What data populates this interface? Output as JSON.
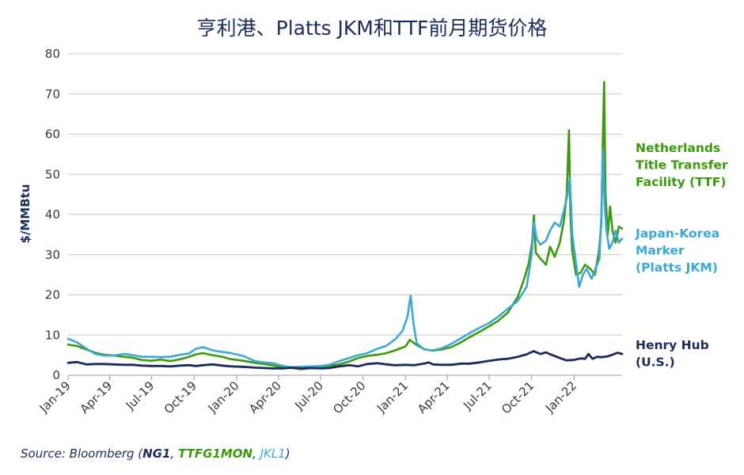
{
  "colors": {
    "ttf": "#3a9a0c",
    "jkm": "#3aa9d6",
    "henry_hub": "#1c2b5a",
    "title": "#1c2b5a"
  },
  "chart_data": {
    "type": "line",
    "title": "亨利港、Platts JKM和TTF前月期货价格",
    "ylabel": "$/MMBtu",
    "xlabel": "",
    "ylim": [
      0,
      80
    ],
    "yticks": [
      0,
      10,
      20,
      30,
      40,
      50,
      60,
      70,
      80
    ],
    "grid": "horizontal",
    "legend": "right, labels beside line ends",
    "x_tick_labels": [
      "Jan-19",
      "Apr-19",
      "Jul-19",
      "Oct-19",
      "Jan-20",
      "Apr-20",
      "Jul-20",
      "Oct-20",
      "Jan-21",
      "Apr-21",
      "Jul-21",
      "Oct-21",
      "Jan-22"
    ],
    "x_tick_dates": [
      "2019-01-01",
      "2019-04-01",
      "2019-07-01",
      "2019-10-01",
      "2020-01-01",
      "2020-04-01",
      "2020-07-01",
      "2020-10-01",
      "2021-01-01",
      "2021-04-01",
      "2021-07-01",
      "2021-10-01",
      "2022-01-01"
    ],
    "x_range": [
      "2019-01-01",
      "2022-04-15"
    ],
    "series": [
      {
        "key": "ttf",
        "legend_lines": [
          "Netherlands",
          "Title Transfer",
          "Facility (TTF)"
        ],
        "points": [
          [
            "2019-01-01",
            7.6
          ],
          [
            "2019-01-20",
            7.3
          ],
          [
            "2019-02-10",
            6.4
          ],
          [
            "2019-03-01",
            5.6
          ],
          [
            "2019-03-20",
            5.1
          ],
          [
            "2019-04-10",
            4.9
          ],
          [
            "2019-05-01",
            4.6
          ],
          [
            "2019-05-20",
            4.4
          ],
          [
            "2019-06-10",
            3.8
          ],
          [
            "2019-07-01",
            3.6
          ],
          [
            "2019-07-20",
            3.9
          ],
          [
            "2019-08-10",
            3.5
          ],
          [
            "2019-09-01",
            4.0
          ],
          [
            "2019-09-20",
            4.6
          ],
          [
            "2019-10-05",
            5.2
          ],
          [
            "2019-10-20",
            5.5
          ],
          [
            "2019-11-10",
            5.0
          ],
          [
            "2019-12-01",
            4.6
          ],
          [
            "2019-12-20",
            4.0
          ],
          [
            "2020-01-15",
            3.6
          ],
          [
            "2020-02-10",
            3.1
          ],
          [
            "2020-03-01",
            2.8
          ],
          [
            "2020-03-20",
            2.4
          ],
          [
            "2020-04-10",
            2.0
          ],
          [
            "2020-05-01",
            1.8
          ],
          [
            "2020-05-20",
            1.5
          ],
          [
            "2020-06-10",
            1.8
          ],
          [
            "2020-07-01",
            1.9
          ],
          [
            "2020-07-20",
            2.3
          ],
          [
            "2020-08-10",
            2.7
          ],
          [
            "2020-09-01",
            3.4
          ],
          [
            "2020-09-20",
            4.3
          ],
          [
            "2020-10-10",
            4.8
          ],
          [
            "2020-11-01",
            5.1
          ],
          [
            "2020-11-20",
            5.5
          ],
          [
            "2020-12-10",
            6.2
          ],
          [
            "2021-01-01",
            7.2
          ],
          [
            "2021-01-10",
            8.8
          ],
          [
            "2021-01-25",
            7.5
          ],
          [
            "2021-02-10",
            6.5
          ],
          [
            "2021-03-01",
            6.1
          ],
          [
            "2021-03-20",
            6.4
          ],
          [
            "2021-04-10",
            7.0
          ],
          [
            "2021-05-01",
            8.2
          ],
          [
            "2021-05-20",
            9.5
          ],
          [
            "2021-06-10",
            10.8
          ],
          [
            "2021-07-01",
            12.2
          ],
          [
            "2021-07-20",
            13.5
          ],
          [
            "2021-08-10",
            15.5
          ],
          [
            "2021-09-01",
            19.5
          ],
          [
            "2021-09-15",
            24.0
          ],
          [
            "2021-09-25",
            28.0
          ],
          [
            "2021-10-02",
            33.0
          ],
          [
            "2021-10-06",
            39.8
          ],
          [
            "2021-10-10",
            30.5
          ],
          [
            "2021-10-20",
            29.0
          ],
          [
            "2021-11-01",
            27.5
          ],
          [
            "2021-11-10",
            32.0
          ],
          [
            "2021-11-20",
            29.5
          ],
          [
            "2021-12-01",
            33.0
          ],
          [
            "2021-12-10",
            38.5
          ],
          [
            "2021-12-16",
            45.0
          ],
          [
            "2021-12-21",
            61.0
          ],
          [
            "2021-12-24",
            40.0
          ],
          [
            "2021-12-28",
            31.0
          ],
          [
            "2022-01-05",
            25.0
          ],
          [
            "2022-01-15",
            25.5
          ],
          [
            "2022-01-25",
            27.5
          ],
          [
            "2022-02-05",
            26.5
          ],
          [
            "2022-02-15",
            25.0
          ],
          [
            "2022-02-24",
            31.0
          ],
          [
            "2022-03-01",
            38.0
          ],
          [
            "2022-03-04",
            57.0
          ],
          [
            "2022-03-07",
            73.0
          ],
          [
            "2022-03-10",
            45.0
          ],
          [
            "2022-03-15",
            35.0
          ],
          [
            "2022-03-20",
            42.0
          ],
          [
            "2022-03-25",
            36.0
          ],
          [
            "2022-04-01",
            33.0
          ],
          [
            "2022-04-08",
            37.0
          ],
          [
            "2022-04-15",
            36.5
          ]
        ]
      },
      {
        "key": "jkm",
        "legend_lines": [
          "Japan-Korea",
          "Marker",
          "(Platts JKM)"
        ],
        "points": [
          [
            "2019-01-01",
            9.1
          ],
          [
            "2019-01-20",
            8.2
          ],
          [
            "2019-02-10",
            6.6
          ],
          [
            "2019-03-01",
            5.3
          ],
          [
            "2019-03-20",
            4.9
          ],
          [
            "2019-04-10",
            4.9
          ],
          [
            "2019-05-01",
            5.3
          ],
          [
            "2019-05-20",
            5.0
          ],
          [
            "2019-06-10",
            4.6
          ],
          [
            "2019-07-01",
            4.6
          ],
          [
            "2019-07-20",
            4.5
          ],
          [
            "2019-08-10",
            4.6
          ],
          [
            "2019-09-01",
            5.1
          ],
          [
            "2019-09-20",
            5.4
          ],
          [
            "2019-10-05",
            6.6
          ],
          [
            "2019-10-20",
            7.0
          ],
          [
            "2019-11-10",
            6.2
          ],
          [
            "2019-12-01",
            5.8
          ],
          [
            "2019-12-20",
            5.5
          ],
          [
            "2020-01-15",
            4.8
          ],
          [
            "2020-02-10",
            3.5
          ],
          [
            "2020-03-01",
            3.2
          ],
          [
            "2020-03-20",
            3.0
          ],
          [
            "2020-04-10",
            2.3
          ],
          [
            "2020-05-01",
            2.0
          ],
          [
            "2020-05-20",
            2.1
          ],
          [
            "2020-06-10",
            2.2
          ],
          [
            "2020-07-01",
            2.3
          ],
          [
            "2020-07-20",
            2.6
          ],
          [
            "2020-08-10",
            3.5
          ],
          [
            "2020-09-01",
            4.3
          ],
          [
            "2020-09-20",
            5.0
          ],
          [
            "2020-10-10",
            5.5
          ],
          [
            "2020-11-01",
            6.6
          ],
          [
            "2020-11-20",
            7.3
          ],
          [
            "2020-12-10",
            9.0
          ],
          [
            "2020-12-25",
            11.0
          ],
          [
            "2021-01-05",
            14.5
          ],
          [
            "2021-01-12",
            19.8
          ],
          [
            "2021-01-18",
            13.0
          ],
          [
            "2021-01-25",
            8.0
          ],
          [
            "2021-02-10",
            6.4
          ],
          [
            "2021-03-01",
            6.2
          ],
          [
            "2021-03-20",
            6.7
          ],
          [
            "2021-04-10",
            7.8
          ],
          [
            "2021-05-01",
            9.2
          ],
          [
            "2021-05-20",
            10.5
          ],
          [
            "2021-06-10",
            11.8
          ],
          [
            "2021-07-01",
            13.0
          ],
          [
            "2021-07-20",
            14.5
          ],
          [
            "2021-08-10",
            16.5
          ],
          [
            "2021-09-01",
            18.5
          ],
          [
            "2021-09-20",
            22.0
          ],
          [
            "2021-10-01",
            30.0
          ],
          [
            "2021-10-06",
            38.0
          ],
          [
            "2021-10-12",
            34.0
          ],
          [
            "2021-10-20",
            32.5
          ],
          [
            "2021-11-01",
            33.5
          ],
          [
            "2021-11-10",
            36.0
          ],
          [
            "2021-11-20",
            38.0
          ],
          [
            "2021-12-01",
            37.0
          ],
          [
            "2021-12-10",
            41.0
          ],
          [
            "2021-12-18",
            45.0
          ],
          [
            "2021-12-23",
            49.0
          ],
          [
            "2021-12-28",
            35.0
          ],
          [
            "2022-01-05",
            28.0
          ],
          [
            "2022-01-12",
            22.0
          ],
          [
            "2022-01-20",
            25.0
          ],
          [
            "2022-01-28",
            26.5
          ],
          [
            "2022-02-08",
            24.0
          ],
          [
            "2022-02-18",
            27.0
          ],
          [
            "2022-02-25",
            29.0
          ],
          [
            "2022-03-01",
            40.0
          ],
          [
            "2022-03-04",
            56.0
          ],
          [
            "2022-03-08",
            43.0
          ],
          [
            "2022-03-12",
            36.0
          ],
          [
            "2022-03-18",
            31.5
          ],
          [
            "2022-03-25",
            33.0
          ],
          [
            "2022-04-01",
            36.0
          ],
          [
            "2022-04-08",
            33.0
          ],
          [
            "2022-04-15",
            34.0
          ]
        ]
      },
      {
        "key": "henry_hub",
        "legend_lines": [
          "Henry Hub",
          "(U.S.)"
        ],
        "points": [
          [
            "2019-01-01",
            3.1
          ],
          [
            "2019-01-20",
            3.3
          ],
          [
            "2019-02-10",
            2.7
          ],
          [
            "2019-03-01",
            2.8
          ],
          [
            "2019-03-20",
            2.8
          ],
          [
            "2019-04-10",
            2.7
          ],
          [
            "2019-05-01",
            2.6
          ],
          [
            "2019-05-20",
            2.6
          ],
          [
            "2019-06-10",
            2.4
          ],
          [
            "2019-07-01",
            2.3
          ],
          [
            "2019-07-20",
            2.3
          ],
          [
            "2019-08-10",
            2.2
          ],
          [
            "2019-09-01",
            2.4
          ],
          [
            "2019-09-20",
            2.5
          ],
          [
            "2019-10-05",
            2.3
          ],
          [
            "2019-10-20",
            2.5
          ],
          [
            "2019-11-10",
            2.7
          ],
          [
            "2019-12-01",
            2.4
          ],
          [
            "2019-12-20",
            2.2
          ],
          [
            "2020-01-15",
            2.1
          ],
          [
            "2020-02-10",
            1.9
          ],
          [
            "2020-03-01",
            1.8
          ],
          [
            "2020-03-20",
            1.7
          ],
          [
            "2020-04-10",
            1.7
          ],
          [
            "2020-05-01",
            1.9
          ],
          [
            "2020-05-20",
            1.7
          ],
          [
            "2020-06-10",
            1.8
          ],
          [
            "2020-07-01",
            1.7
          ],
          [
            "2020-07-20",
            1.8
          ],
          [
            "2020-08-10",
            2.2
          ],
          [
            "2020-09-01",
            2.5
          ],
          [
            "2020-09-20",
            2.2
          ],
          [
            "2020-10-10",
            2.8
          ],
          [
            "2020-11-01",
            3.0
          ],
          [
            "2020-11-20",
            2.7
          ],
          [
            "2020-12-10",
            2.5
          ],
          [
            "2021-01-01",
            2.6
          ],
          [
            "2021-01-20",
            2.5
          ],
          [
            "2021-02-10",
            2.9
          ],
          [
            "2021-02-20",
            3.2
          ],
          [
            "2021-03-01",
            2.7
          ],
          [
            "2021-03-20",
            2.6
          ],
          [
            "2021-04-10",
            2.6
          ],
          [
            "2021-05-01",
            2.9
          ],
          [
            "2021-05-20",
            2.9
          ],
          [
            "2021-06-10",
            3.2
          ],
          [
            "2021-07-01",
            3.6
          ],
          [
            "2021-07-20",
            3.9
          ],
          [
            "2021-08-10",
            4.1
          ],
          [
            "2021-09-01",
            4.6
          ],
          [
            "2021-09-20",
            5.2
          ],
          [
            "2021-10-05",
            6.0
          ],
          [
            "2021-10-20",
            5.3
          ],
          [
            "2021-11-01",
            5.7
          ],
          [
            "2021-11-15",
            5.0
          ],
          [
            "2021-12-01",
            4.3
          ],
          [
            "2021-12-15",
            3.7
          ],
          [
            "2022-01-01",
            3.8
          ],
          [
            "2022-01-15",
            4.2
          ],
          [
            "2022-01-25",
            4.1
          ],
          [
            "2022-02-01",
            5.3
          ],
          [
            "2022-02-10",
            4.1
          ],
          [
            "2022-02-20",
            4.6
          ],
          [
            "2022-03-01",
            4.5
          ],
          [
            "2022-03-15",
            4.7
          ],
          [
            "2022-03-25",
            5.1
          ],
          [
            "2022-04-05",
            5.6
          ],
          [
            "2022-04-15",
            5.3
          ]
        ]
      }
    ]
  },
  "source": {
    "prefix": "Source: Bloomberg (",
    "code_hh": "NG1",
    "sep1": ", ",
    "code_ttf": "TTFG1MON",
    "sep2": ", ",
    "code_jkm": "JKL1",
    "suffix": ")"
  }
}
